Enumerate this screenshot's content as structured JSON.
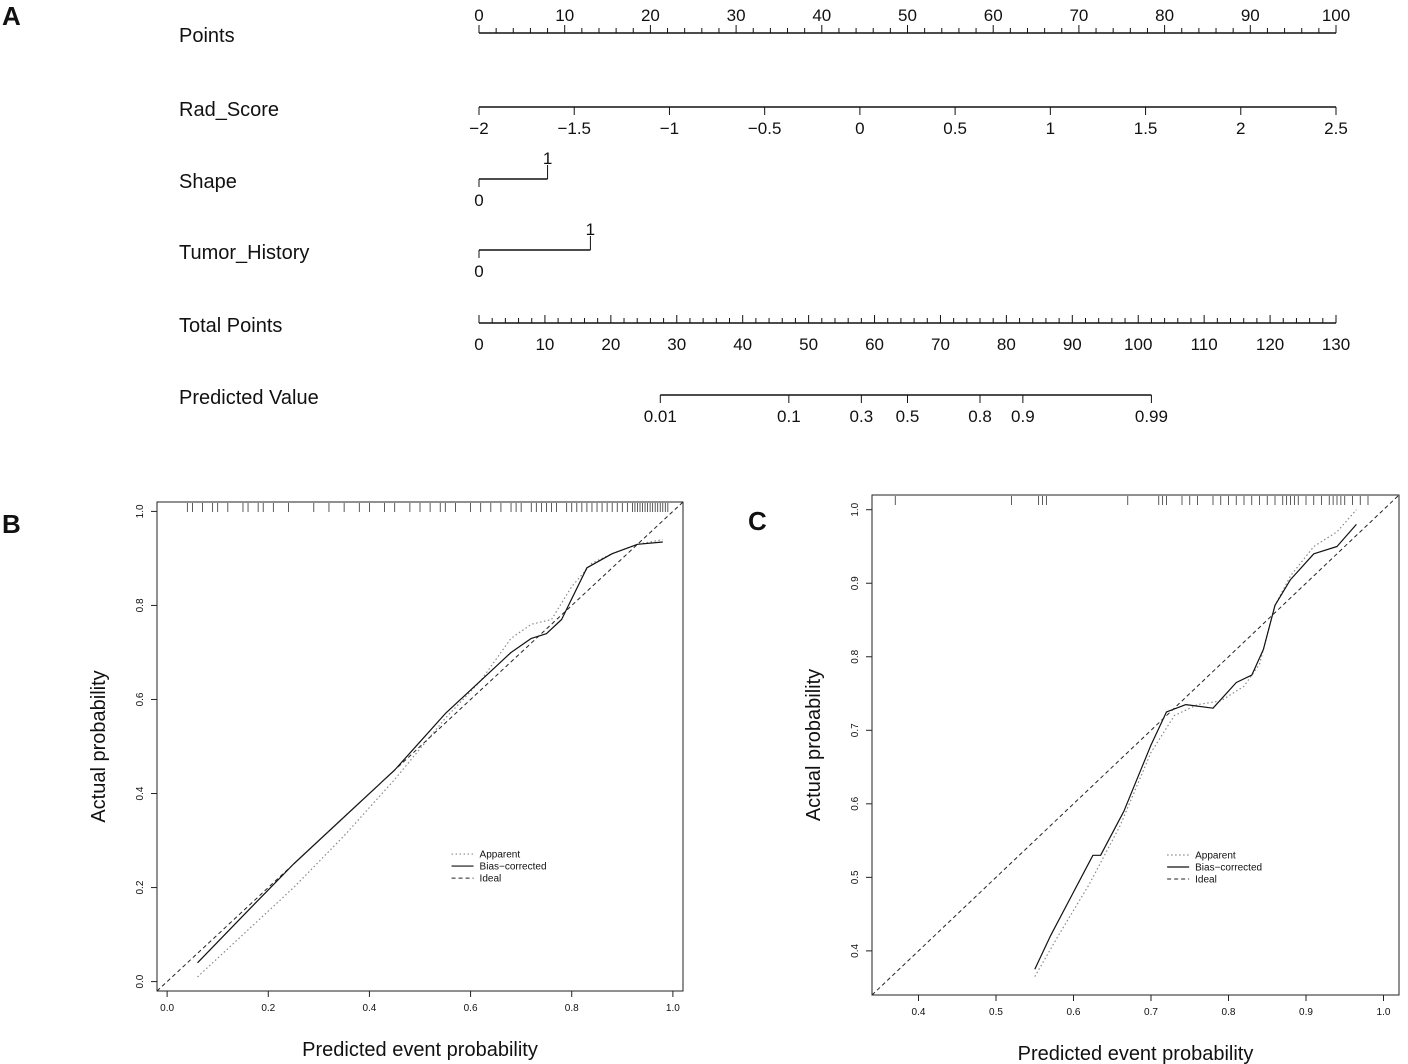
{
  "panels": {
    "A": "A",
    "B": "B",
    "C": "C"
  },
  "chart_data": [
    {
      "type": "nomogram",
      "panel": "A",
      "rows": [
        {
          "key": "points",
          "label": "Points",
          "range": [
            0,
            100
          ],
          "ticks": [
            {
              "v": 0,
              "t": "0"
            },
            {
              "v": 10,
              "t": "10"
            },
            {
              "v": 20,
              "t": "20"
            },
            {
              "v": 30,
              "t": "30"
            },
            {
              "v": 40,
              "t": "40"
            },
            {
              "v": 50,
              "t": "50"
            },
            {
              "v": 60,
              "t": "60"
            },
            {
              "v": 70,
              "t": "70"
            },
            {
              "v": 80,
              "t": "80"
            },
            {
              "v": 90,
              "t": "90"
            },
            {
              "v": 100,
              "t": "100"
            }
          ],
          "minor_step": 2
        },
        {
          "key": "rad_score",
          "label": "Rad_Score",
          "range": [
            -2,
            2.5
          ],
          "points_range": [
            0,
            100
          ],
          "ticks": [
            {
              "v": -2,
              "t": "−2"
            },
            {
              "v": -1.5,
              "t": "−1.5"
            },
            {
              "v": -1,
              "t": "−1"
            },
            {
              "v": -0.5,
              "t": "−0.5"
            },
            {
              "v": 0,
              "t": "0"
            },
            {
              "v": 0.5,
              "t": "0.5"
            },
            {
              "v": 1,
              "t": "1"
            },
            {
              "v": 1.5,
              "t": "1.5"
            },
            {
              "v": 2,
              "t": "2"
            },
            {
              "v": 2.5,
              "t": "2.5"
            }
          ]
        },
        {
          "key": "shape",
          "label": "Shape",
          "levels": [
            {
              "t": "0",
              "points": 0
            },
            {
              "t": "1",
              "points": 8
            }
          ]
        },
        {
          "key": "tumor_history",
          "label": "Tumor_History",
          "levels": [
            {
              "t": "0",
              "points": 0
            },
            {
              "t": "1",
              "points": 13
            }
          ]
        },
        {
          "key": "total_points",
          "label": "Total Points",
          "range": [
            0,
            130
          ],
          "ticks": [
            {
              "v": 0,
              "t": "0"
            },
            {
              "v": 10,
              "t": "10"
            },
            {
              "v": 20,
              "t": "20"
            },
            {
              "v": 30,
              "t": "30"
            },
            {
              "v": 40,
              "t": "40"
            },
            {
              "v": 50,
              "t": "50"
            },
            {
              "v": 60,
              "t": "60"
            },
            {
              "v": 70,
              "t": "70"
            },
            {
              "v": 80,
              "t": "80"
            },
            {
              "v": 90,
              "t": "90"
            },
            {
              "v": 100,
              "t": "100"
            },
            {
              "v": 110,
              "t": "110"
            },
            {
              "v": 120,
              "t": "120"
            },
            {
              "v": 130,
              "t": "130"
            }
          ],
          "minor_step": 2
        },
        {
          "key": "predicted_value",
          "label": "Predicted Value",
          "ticks": [
            {
              "t": "0.01",
              "total_points": 27.5
            },
            {
              "t": "0.1",
              "total_points": 47
            },
            {
              "t": "0.3",
              "total_points": 58
            },
            {
              "t": "0.5",
              "total_points": 65
            },
            {
              "t": "0.8",
              "total_points": 76
            },
            {
              "t": "0.9",
              "total_points": 82.5
            },
            {
              "t": "0.99",
              "total_points": 102
            }
          ]
        }
      ]
    },
    {
      "type": "line",
      "panel": "B",
      "title": "",
      "xlabel": "Predicted event probability",
      "ylabel": "Actual probability",
      "xlim": [
        -0.02,
        1.02
      ],
      "ylim": [
        -0.02,
        1.02
      ],
      "x_ticks": [
        {
          "v": 0,
          "t": "0.0"
        },
        {
          "v": 0.2,
          "t": "0.2"
        },
        {
          "v": 0.4,
          "t": "0.4"
        },
        {
          "v": 0.6,
          "t": "0.6"
        },
        {
          "v": 0.8,
          "t": "0.8"
        },
        {
          "v": 1,
          "t": "1.0"
        }
      ],
      "y_ticks": [
        {
          "v": 0,
          "t": "0.0"
        },
        {
          "v": 0.2,
          "t": "0.2"
        },
        {
          "v": 0.4,
          "t": "0.4"
        },
        {
          "v": 0.6,
          "t": "0.6"
        },
        {
          "v": 0.8,
          "t": "0.8"
        },
        {
          "v": 1,
          "t": "1.0"
        }
      ],
      "legend": {
        "position": "center-right",
        "entries": [
          "Apparent",
          "Bias−corrected",
          "Ideal"
        ]
      },
      "series": [
        {
          "name": "Apparent",
          "style": "dotted",
          "x": [
            0.06,
            0.15,
            0.25,
            0.35,
            0.45,
            0.55,
            0.62,
            0.68,
            0.72,
            0.76,
            0.8,
            0.84,
            0.88,
            0.93,
            0.98
          ],
          "y": [
            0.01,
            0.1,
            0.2,
            0.31,
            0.43,
            0.56,
            0.64,
            0.73,
            0.76,
            0.77,
            0.84,
            0.89,
            0.91,
            0.93,
            0.94
          ]
        },
        {
          "name": "Bias−corrected",
          "style": "solid",
          "x": [
            0.06,
            0.15,
            0.25,
            0.35,
            0.45,
            0.5,
            0.55,
            0.62,
            0.68,
            0.72,
            0.75,
            0.78,
            0.83,
            0.88,
            0.93,
            0.98
          ],
          "y": [
            0.04,
            0.14,
            0.25,
            0.35,
            0.45,
            0.51,
            0.57,
            0.64,
            0.7,
            0.73,
            0.74,
            0.77,
            0.88,
            0.91,
            0.93,
            0.935
          ]
        },
        {
          "name": "Ideal",
          "style": "dashed",
          "x": [
            -0.02,
            1.02
          ],
          "y": [
            -0.02,
            1.02
          ]
        }
      ],
      "rug": [
        0.04,
        0.05,
        0.07,
        0.09,
        0.1,
        0.12,
        0.15,
        0.16,
        0.18,
        0.19,
        0.21,
        0.24,
        0.29,
        0.32,
        0.35,
        0.38,
        0.4,
        0.43,
        0.45,
        0.48,
        0.5,
        0.52,
        0.54,
        0.55,
        0.57,
        0.6,
        0.62,
        0.64,
        0.66,
        0.68,
        0.69,
        0.7,
        0.72,
        0.73,
        0.74,
        0.75,
        0.76,
        0.77,
        0.79,
        0.8,
        0.81,
        0.82,
        0.83,
        0.84,
        0.85,
        0.86,
        0.87,
        0.88,
        0.89,
        0.9,
        0.91,
        0.92,
        0.925,
        0.93,
        0.935,
        0.94,
        0.945,
        0.95,
        0.955,
        0.96,
        0.965,
        0.97,
        0.975,
        0.98,
        0.985,
        0.99
      ]
    },
    {
      "type": "line",
      "panel": "C",
      "title": "",
      "xlabel": "Predicted event probability",
      "ylabel": "Actual probability",
      "xlim": [
        0.34,
        1.02
      ],
      "ylim": [
        0.34,
        1.02
      ],
      "x_ticks": [
        {
          "v": 0.4,
          "t": "0.4"
        },
        {
          "v": 0.5,
          "t": "0.5"
        },
        {
          "v": 0.6,
          "t": "0.6"
        },
        {
          "v": 0.7,
          "t": "0.7"
        },
        {
          "v": 0.8,
          "t": "0.8"
        },
        {
          "v": 0.9,
          "t": "0.9"
        },
        {
          "v": 1,
          "t": "1.0"
        }
      ],
      "y_ticks": [
        {
          "v": 0.4,
          "t": "0.4"
        },
        {
          "v": 0.5,
          "t": "0.5"
        },
        {
          "v": 0.6,
          "t": "0.6"
        },
        {
          "v": 0.7,
          "t": "0.7"
        },
        {
          "v": 0.8,
          "t": "0.8"
        },
        {
          "v": 0.9,
          "t": "0.9"
        },
        {
          "v": 1,
          "t": "1.0"
        }
      ],
      "legend": {
        "position": "center-right",
        "entries": [
          "Apparent",
          "Bias−corrected",
          "Ideal"
        ]
      },
      "series": [
        {
          "name": "Apparent",
          "style": "dotted",
          "x": [
            0.55,
            0.58,
            0.62,
            0.66,
            0.7,
            0.73,
            0.76,
            0.79,
            0.82,
            0.84,
            0.86,
            0.88,
            0.91,
            0.94,
            0.965
          ],
          "y": [
            0.365,
            0.42,
            0.49,
            0.57,
            0.67,
            0.72,
            0.735,
            0.74,
            0.76,
            0.79,
            0.87,
            0.91,
            0.95,
            0.97,
            1.0
          ]
        },
        {
          "name": "Bias−corrected",
          "style": "solid",
          "x": [
            0.55,
            0.57,
            0.6,
            0.625,
            0.635,
            0.665,
            0.7,
            0.72,
            0.745,
            0.78,
            0.81,
            0.83,
            0.845,
            0.86,
            0.88,
            0.91,
            0.94,
            0.965
          ],
          "y": [
            0.375,
            0.42,
            0.48,
            0.53,
            0.53,
            0.59,
            0.68,
            0.725,
            0.735,
            0.73,
            0.765,
            0.775,
            0.81,
            0.87,
            0.905,
            0.94,
            0.95,
            0.98
          ]
        },
        {
          "name": "Ideal",
          "style": "dashed",
          "x": [
            0.34,
            1.02
          ],
          "y": [
            0.34,
            1.02
          ]
        }
      ],
      "rug": [
        0.37,
        0.52,
        0.555,
        0.56,
        0.565,
        0.67,
        0.71,
        0.715,
        0.72,
        0.74,
        0.75,
        0.76,
        0.78,
        0.79,
        0.8,
        0.81,
        0.82,
        0.83,
        0.84,
        0.85,
        0.86,
        0.87,
        0.875,
        0.88,
        0.885,
        0.89,
        0.9,
        0.91,
        0.92,
        0.93,
        0.935,
        0.94,
        0.945,
        0.95,
        0.96,
        0.97,
        0.98
      ]
    }
  ]
}
